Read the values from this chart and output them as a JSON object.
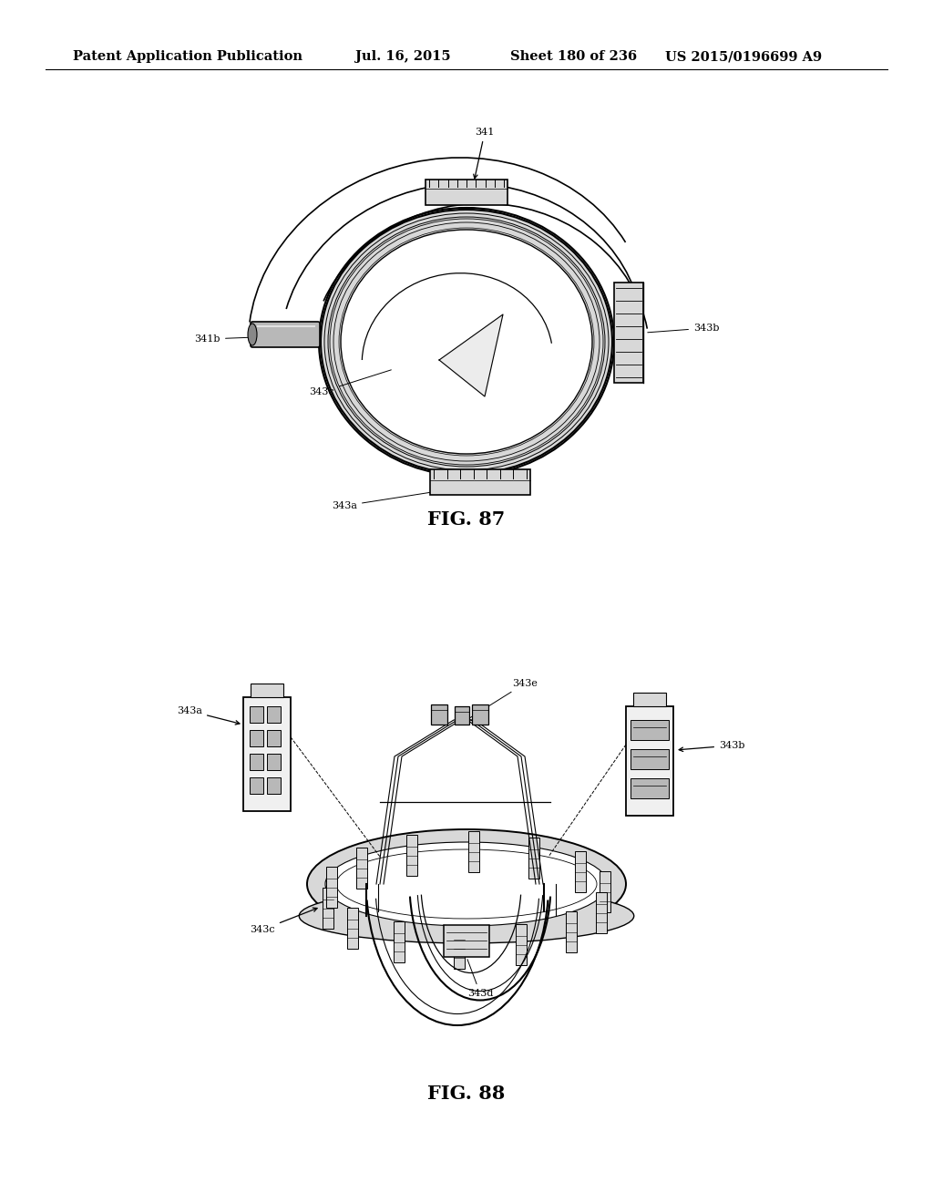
{
  "background_color": "#ffffff",
  "header_text": "Patent Application Publication",
  "header_date": "Jul. 16, 2015",
  "header_sheet": "Sheet 180 of 236",
  "header_patent": "US 2015/0196699 A9",
  "fig87_caption": "FIG. 87",
  "fig88_caption": "FIG. 88",
  "caption_fontsize": 15,
  "label_fontsize": 8,
  "header_fontsize": 10.5,
  "line_color": "#000000",
  "gray_light": "#d8d8d8",
  "gray_mid": "#b8b8b8",
  "gray_dark": "#888888"
}
